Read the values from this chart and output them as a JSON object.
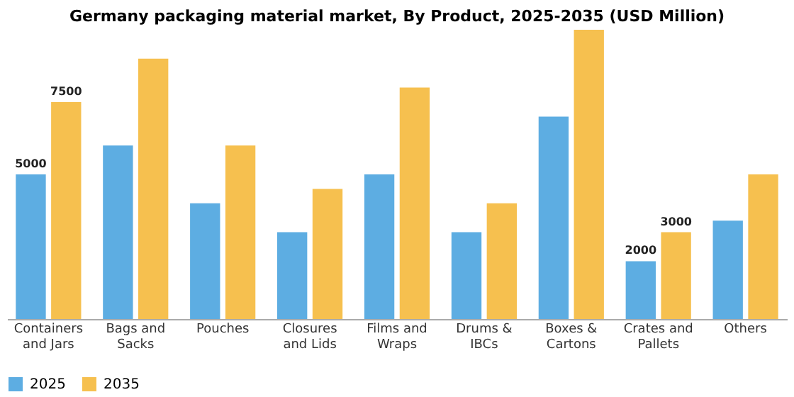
{
  "chart_data": {
    "type": "bar",
    "title": "Germany packaging material market, By Product, 2025-2035 (USD Million)",
    "categories": [
      "Containers and Jars",
      "Bags and Sacks",
      "Pouches",
      "Closures and Lids",
      "Films and Wraps",
      "Drums & IBCs",
      "Boxes & Cartons",
      "Crates and Pallets",
      "Others"
    ],
    "series": [
      {
        "name": "2025",
        "color": "#5dade2",
        "values": [
          5000,
          6000,
          4000,
          3000,
          5000,
          3000,
          7000,
          2000,
          3400
        ],
        "value_labels": [
          "5000",
          null,
          null,
          null,
          null,
          null,
          null,
          "2000",
          null
        ]
      },
      {
        "name": "2035",
        "color": "#f6c04f",
        "values": [
          7500,
          9000,
          6000,
          4500,
          8000,
          4000,
          10000,
          3000,
          5000
        ],
        "value_labels": [
          "7500",
          null,
          null,
          null,
          null,
          null,
          null,
          "3000",
          null
        ]
      }
    ],
    "legend": "bottom",
    "grid": false
  }
}
